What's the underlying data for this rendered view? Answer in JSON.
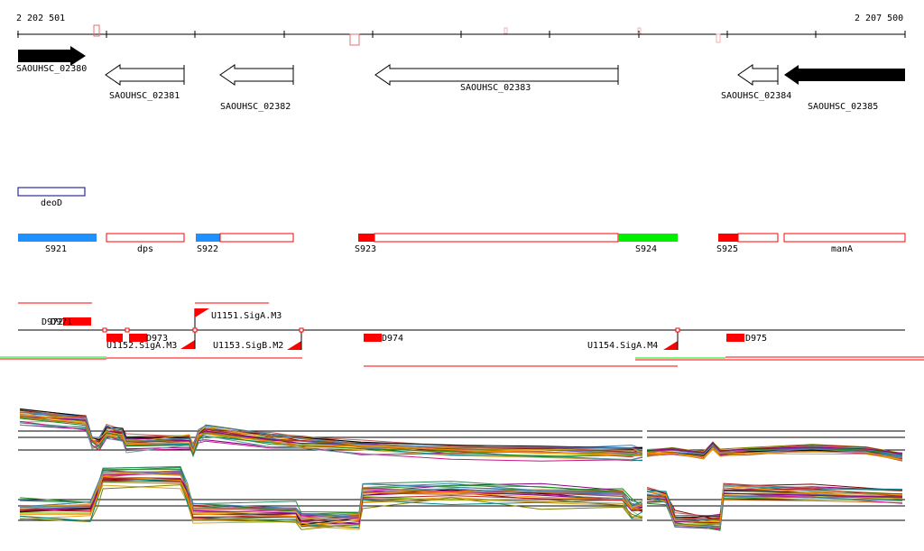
{
  "ruler": {
    "start_label": "2 202 501",
    "end_label": "2 207 500"
  },
  "genes": [
    {
      "label": "SAOUHSC_02380"
    },
    {
      "label": "SAOUHSC_02381"
    },
    {
      "label": "SAOUHSC_02382"
    },
    {
      "label": "SAOUHSC_02383"
    },
    {
      "label": "SAOUHSC_02384"
    },
    {
      "label": "SAOUHSC_02385"
    }
  ],
  "operon": {
    "label": "deoD"
  },
  "segments": [
    {
      "label": "S921",
      "color": "#1e90ff"
    },
    {
      "label": "dps"
    },
    {
      "label": "S922",
      "color": "#1e90ff"
    },
    {
      "label": "S923",
      "color": "#ff0000"
    },
    {
      "label": "S924",
      "color": "#00ee00"
    },
    {
      "label": "S925",
      "color": "#ff0000"
    },
    {
      "label": "manA"
    }
  ],
  "features": [
    {
      "label": "D971"
    },
    {
      "label": "D972"
    },
    {
      "label": "D973"
    },
    {
      "label": "D974"
    },
    {
      "label": "D975"
    },
    {
      "label": "U1151.SigA.M3"
    },
    {
      "label": "U1152.SigA.M3"
    },
    {
      "label": "U1153.SigB.M2"
    },
    {
      "label": "U1154.SigA.M4"
    }
  ],
  "colors": {
    "accent_red": "#ff0000",
    "accent_green": "#00ee00",
    "accent_blue": "#1e90ff",
    "operon_outline": "#00008b"
  }
}
